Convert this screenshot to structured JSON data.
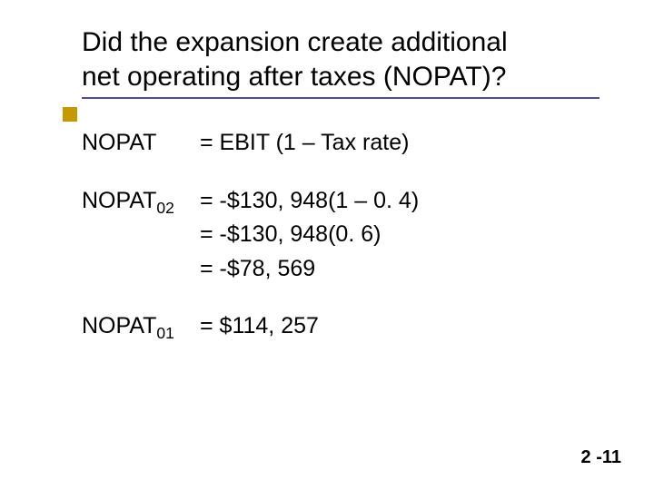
{
  "title": {
    "line1": "Did the expansion create additional",
    "line2": "net operating after taxes (NOPAT)?"
  },
  "colors": {
    "underline": "#4b4ba8",
    "accent_box": "#c49a00",
    "text": "#000000",
    "background": "#ffffff"
  },
  "typography": {
    "title_fontsize": 30,
    "body_fontsize": 25,
    "pagenum_fontsize": 20,
    "font_family": "Arial"
  },
  "formulas": {
    "nopat_def": {
      "label": "NOPAT",
      "rhs": "= EBIT (1 – Tax rate)"
    },
    "nopat02": {
      "label_base": "NOPAT",
      "label_sub": "02",
      "line1": "= -$130, 948(1 – 0. 4)",
      "line2": "= -$130, 948(0. 6)",
      "line3": "= -$78, 569"
    },
    "nopat01": {
      "label_base": "NOPAT",
      "label_sub": "01",
      "rhs": "= $114, 257"
    }
  },
  "page_number": "2 -11"
}
